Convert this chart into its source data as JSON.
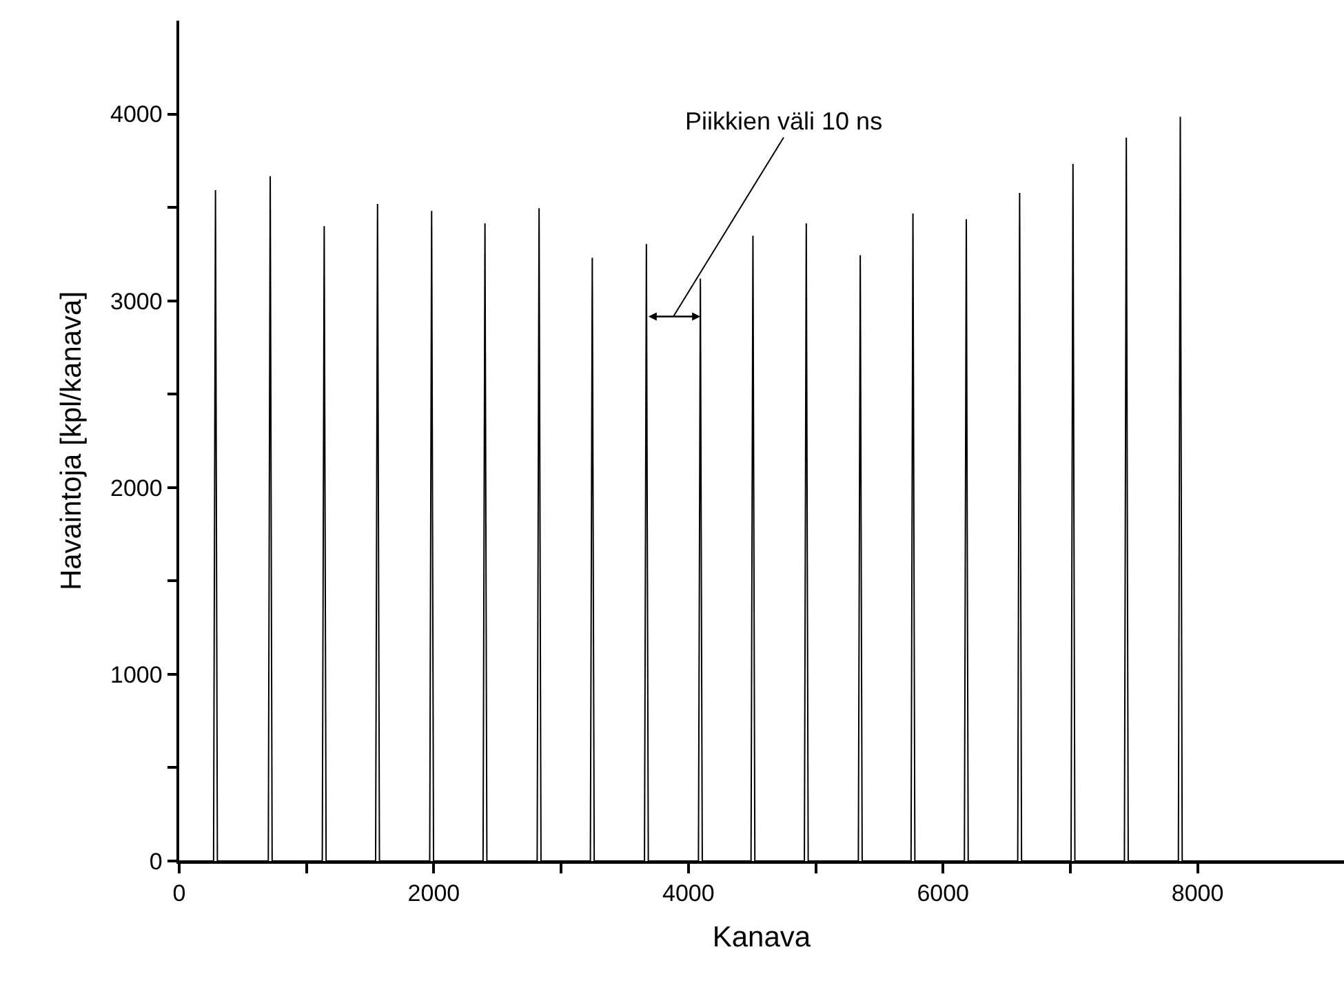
{
  "chart_data": {
    "type": "line",
    "xlabel": "Kanava",
    "ylabel": "Havaintoja [kpl/kanava]",
    "x": [
      0,
      270,
      285,
      300,
      700,
      715,
      730,
      1124,
      1139,
      1154,
      1543,
      1558,
      1573,
      1968,
      1983,
      1998,
      2387,
      2402,
      2417,
      2812,
      2827,
      2842,
      3230,
      3245,
      3260,
      3655,
      3670,
      3685,
      4079,
      4094,
      4109,
      4492,
      4507,
      4522,
      4911,
      4926,
      4941,
      5335,
      5350,
      5365,
      5749,
      5764,
      5779,
      6168,
      6183,
      6198,
      6587,
      6602,
      6617,
      7006,
      7021,
      7036,
      7425,
      7440,
      7455,
      7849,
      7864,
      7879,
      9150
    ],
    "series": [
      {
        "color": "#000000",
        "values": [
          0,
          0,
          3593,
          0,
          0,
          3667,
          0,
          0,
          3400,
          0,
          0,
          3519,
          0,
          0,
          3481,
          0,
          0,
          3415,
          0,
          0,
          3496,
          0,
          0,
          3230,
          0,
          0,
          3304,
          0,
          0,
          3119,
          0,
          0,
          3348,
          0,
          0,
          3415,
          0,
          0,
          3244,
          0,
          0,
          3467,
          0,
          0,
          3437,
          0,
          0,
          3578,
          0,
          0,
          3733,
          0,
          0,
          3874,
          0,
          0,
          3985,
          0,
          0
        ]
      }
    ],
    "xlim": [
      0,
      9150
    ],
    "ylim": [
      0,
      4500
    ],
    "xticks": [
      0,
      {
        "value": 1000,
        "label": null
      },
      2000,
      {
        "value": 3000,
        "label": null
      },
      4000,
      {
        "value": 5000,
        "label": null
      },
      6000,
      {
        "value": 7000,
        "label": null
      },
      8000
    ],
    "yticks": [
      0,
      {
        "value": 500,
        "label": null
      },
      1000,
      {
        "value": 1500,
        "label": null
      },
      2000,
      {
        "value": 2500,
        "label": null
      },
      3000,
      {
        "value": 3500,
        "label": null
      },
      4000
    ],
    "annotations": [
      "Piikkien väli 10 ns"
    ],
    "marker": "none",
    "line_style": "solid"
  }
}
